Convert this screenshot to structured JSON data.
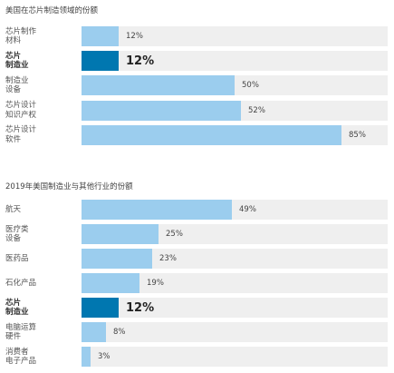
{
  "chart_data": [
    {
      "type": "bar",
      "orientation": "horizontal",
      "title": "美国在芯片制造领域的份额",
      "categories": [
        "芯片制作\n材料",
        "芯片\n制造业",
        "制造业\n设备",
        "芯片设计\n知识产权",
        "芯片设计\n软件"
      ],
      "values": [
        12,
        12,
        50,
        52,
        85
      ],
      "value_labels": [
        "12%",
        "12%",
        "50%",
        "52%",
        "85%"
      ],
      "highlight_index": 1,
      "xlim": [
        0,
        100
      ],
      "colors": {
        "bar": "#9bcdee",
        "highlight": "#0077b0",
        "track": "#efefef"
      }
    },
    {
      "type": "bar",
      "orientation": "horizontal",
      "title": "2019年美国制造业与其他行业的份额",
      "categories": [
        "航天",
        "医疗类\n设备",
        "医药品",
        "石化产品",
        "芯片\n制造业",
        "电脑运算\n硬件",
        "消费者\n电子产品"
      ],
      "values": [
        49,
        25,
        23,
        19,
        12,
        8,
        3
      ],
      "value_labels": [
        "49%",
        "25%",
        "23%",
        "19%",
        "12%",
        "8%",
        "3%"
      ],
      "highlight_index": 4,
      "xlim": [
        0,
        100
      ],
      "colors": {
        "bar": "#9bcdee",
        "highlight": "#0077b0",
        "track": "#efefef"
      }
    }
  ]
}
